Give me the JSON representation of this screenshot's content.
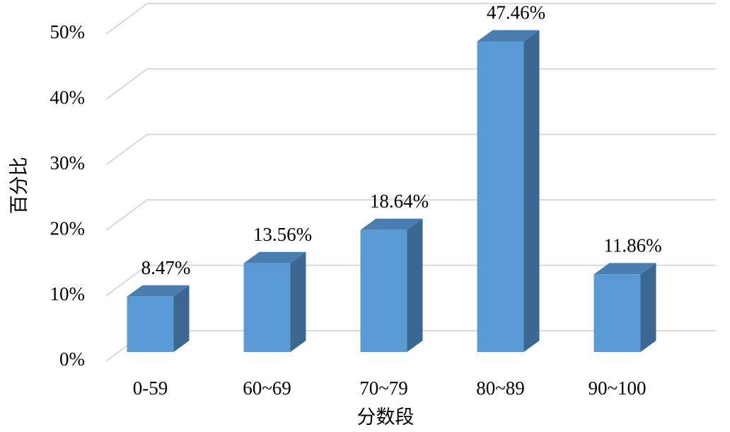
{
  "chart_data": {
    "type": "bar3d",
    "x_label": "分数段",
    "y_label": "百分比",
    "categories": [
      "0-59",
      "60~69",
      "70~79",
      "80~89",
      "90~100"
    ],
    "values": [
      8.47,
      13.56,
      18.64,
      47.46,
      11.86
    ],
    "value_labels": [
      "8.47%",
      "13.56%",
      "18.64%",
      "47.46%",
      "11.86%"
    ],
    "color": "#5b9bd5",
    "ylim": [
      0,
      50
    ],
    "yticks": [
      {
        "value": 0,
        "label": "0%"
      },
      {
        "value": 10,
        "label": "10%"
      },
      {
        "value": 20,
        "label": "20%"
      },
      {
        "value": 30,
        "label": "30%"
      },
      {
        "value": 40,
        "label": "40%"
      },
      {
        "value": 50,
        "label": "50%"
      }
    ],
    "grid": true
  }
}
